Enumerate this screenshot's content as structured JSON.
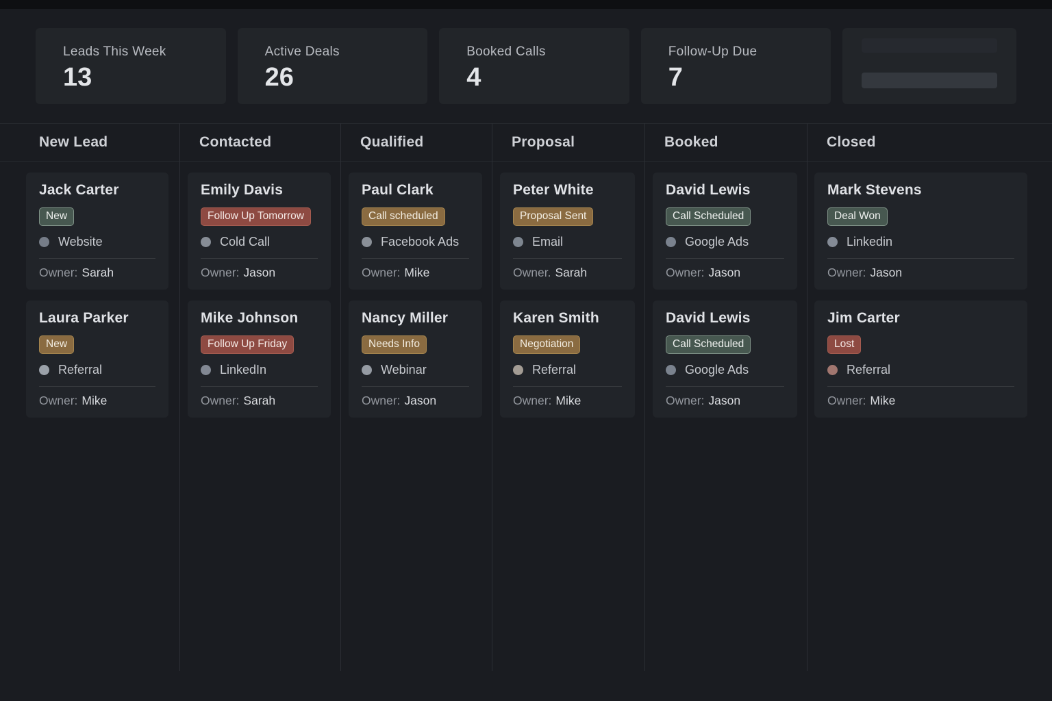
{
  "stats": [
    {
      "label": "Leads This Week",
      "value": "13",
      "skeleton": false
    },
    {
      "label": "Active Deals",
      "value": "26",
      "skeleton": false
    },
    {
      "label": "Booked Calls",
      "value": "4",
      "skeleton": false
    },
    {
      "label": "Follow-Up Due",
      "value": "7",
      "skeleton": false
    },
    {
      "label": "",
      "value": "",
      "skeleton": true
    }
  ],
  "badge_variants": {
    "green": {
      "bg": "#475850",
      "border": "#7f9287",
      "text": "#eff1ef"
    },
    "amber": {
      "bg": "#8a6b41",
      "border": "#a5854e",
      "text": "#f3eee3"
    },
    "red": {
      "bg": "#8e4a42",
      "border": "#a55c50",
      "text": "#f5eae7"
    }
  },
  "columns": [
    {
      "title": "New Lead",
      "cards": [
        {
          "name": "Jack Carter",
          "badge": {
            "label": "New",
            "variant": "green"
          },
          "source": {
            "label": "Website",
            "dot": "#767d88"
          },
          "owner_label": "Owner:",
          "owner": "Sarah"
        },
        {
          "name": "Laura Parker",
          "badge": {
            "label": "New",
            "variant": "amber"
          },
          "source": {
            "label": "Referral",
            "dot": "#9ba1a9"
          },
          "owner_label": "Owner:",
          "owner": "Mike"
        }
      ]
    },
    {
      "title": "Contacted",
      "cards": [
        {
          "name": "Emily Davis",
          "badge": {
            "label": "Follow Up Tomorrow",
            "variant": "red"
          },
          "source": {
            "label": "Cold Call",
            "dot": "#878d96"
          },
          "owner_label": "Owner:",
          "owner": "Jason"
        },
        {
          "name": "Mike Johnson",
          "badge": {
            "label": "Follow Up Friday",
            "variant": "red"
          },
          "source": {
            "label": "LinkedIn",
            "dot": "#828893"
          },
          "owner_label": "Owner:",
          "owner": "Sarah"
        }
      ]
    },
    {
      "title": "Qualified",
      "cards": [
        {
          "name": "Paul Clark",
          "badge": {
            "label": "Call scheduled",
            "variant": "amber"
          },
          "source": {
            "label": "Facebook Ads",
            "dot": "#8a9098"
          },
          "owner_label": "Owner:",
          "owner": "Mike"
        },
        {
          "name": "Nancy Miller",
          "badge": {
            "label": "Needs Info",
            "variant": "amber"
          },
          "source": {
            "label": "Webinar",
            "dot": "#959ba3"
          },
          "owner_label": "Owner:",
          "owner": "Jason"
        }
      ]
    },
    {
      "title": "Proposal",
      "cards": [
        {
          "name": "Peter White",
          "badge": {
            "label": "Proposal Sent",
            "variant": "amber"
          },
          "source": {
            "label": "Email",
            "dot": "#7e8690"
          },
          "owner_label": "Owner.",
          "owner": "Sarah"
        },
        {
          "name": "Karen Smith",
          "badge": {
            "label": "Negotiation",
            "variant": "amber"
          },
          "source": {
            "label": "Referral",
            "dot": "#a39c94"
          },
          "owner_label": "Owner:",
          "owner": "Mike"
        }
      ]
    },
    {
      "title": "Booked",
      "cards": [
        {
          "name": "David Lewis",
          "badge": {
            "label": "Call Scheduled",
            "variant": "green"
          },
          "source": {
            "label": "Google Ads",
            "dot": "#7a828e"
          },
          "owner_label": "Owner:",
          "owner": "Jason"
        },
        {
          "name": "David Lewis",
          "badge": {
            "label": "Call Scheduled",
            "variant": "green"
          },
          "source": {
            "label": "Google Ads",
            "dot": "#7a828e"
          },
          "owner_label": "Owner:",
          "owner": "Jason"
        }
      ]
    },
    {
      "title": "Closed",
      "cards": [
        {
          "name": "Mark Stevens",
          "badge": {
            "label": "Deal Won",
            "variant": "green"
          },
          "source": {
            "label": "Linkedin",
            "dot": "#848b96"
          },
          "owner_label": "Owner:",
          "owner": "Jason"
        },
        {
          "name": "Jim Carter",
          "badge": {
            "label": "Lost",
            "variant": "red"
          },
          "source": {
            "label": "Referral",
            "dot": "#a1766f"
          },
          "owner_label": "Owner:",
          "owner": "Mike"
        }
      ]
    }
  ]
}
